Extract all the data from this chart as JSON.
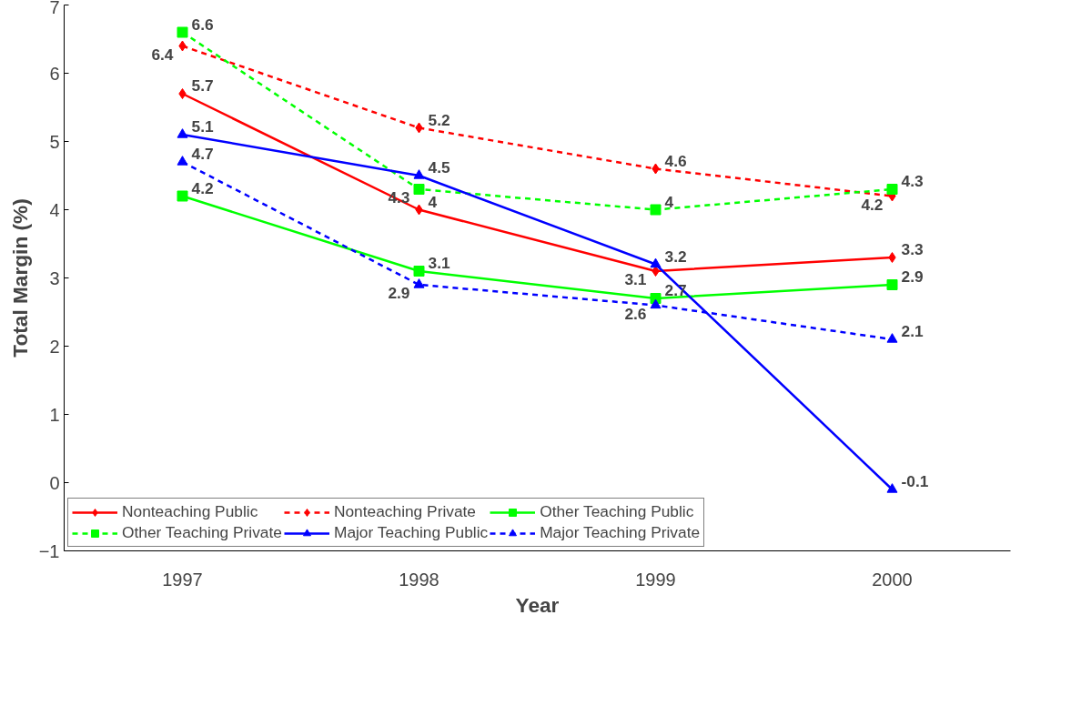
{
  "chart_data": {
    "type": "line",
    "xlabel": "Year",
    "ylabel": "Total Margin (%)",
    "categories": [
      "1997",
      "1998",
      "1999",
      "2000"
    ],
    "ylim": [
      -1,
      7
    ],
    "yticks": [
      -1,
      0,
      1,
      2,
      3,
      4,
      5,
      6,
      7
    ],
    "grid": false,
    "legend": "bottom",
    "data_labels": true,
    "series": [
      {
        "name": "Nonteaching Public",
        "color": "#ff0000",
        "marker": "diamond",
        "line_style": "solid",
        "values": [
          5.7,
          4,
          3.1,
          3.3
        ]
      },
      {
        "name": "Nonteaching Private",
        "color": "#ff0000",
        "marker": "diamond",
        "line_style": "dashed",
        "values": [
          6.4,
          5.2,
          4.6,
          4.2
        ]
      },
      {
        "name": "Other Teaching Public",
        "color": "#00ff00",
        "marker": "square",
        "line_style": "solid",
        "values": [
          4.2,
          3.1,
          2.7,
          2.9
        ]
      },
      {
        "name": "Other Teaching Private",
        "color": "#00ff00",
        "marker": "square",
        "line_style": "dashed",
        "values": [
          6.6,
          4.3,
          4,
          4.3
        ]
      },
      {
        "name": "Major Teaching Public",
        "color": "#0000ff",
        "marker": "triangle",
        "line_style": "solid",
        "values": [
          5.1,
          4.5,
          3.2,
          -0.1
        ]
      },
      {
        "name": "Major Teaching Private",
        "color": "#0000ff",
        "marker": "triangle",
        "line_style": "dashed",
        "values": [
          4.7,
          2.9,
          2.6,
          2.1
        ]
      }
    ]
  }
}
